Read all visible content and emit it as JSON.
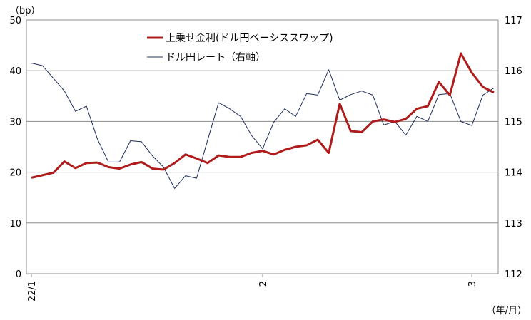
{
  "chart_data": {
    "type": "line",
    "title": "",
    "y_unit_label": "（bp）",
    "x_unit_label": "（年/月）",
    "x_tick_labels": [
      "22/1",
      "2",
      "3"
    ],
    "ylim": [
      0,
      50
    ],
    "y_ticks": [
      0,
      10,
      20,
      30,
      40,
      50
    ],
    "y2lim": [
      112,
      117
    ],
    "y2_ticks": [
      112,
      113,
      114,
      115,
      116,
      117
    ],
    "grid": true,
    "legend_position": "top-center",
    "series": [
      {
        "name": "上乗せ金利(ドル円ベーシススワップ)",
        "axis": "left",
        "color": "#b01c1c",
        "values": [
          18.9,
          19.4,
          19.9,
          22.1,
          20.8,
          21.8,
          21.9,
          21.0,
          20.7,
          21.5,
          22.0,
          20.7,
          20.5,
          21.8,
          23.5,
          22.7,
          21.8,
          23.3,
          23.0,
          23.0,
          23.8,
          24.2,
          23.5,
          24.4,
          25.0,
          25.3,
          26.4,
          23.8,
          33.5,
          28.1,
          27.9,
          30.0,
          30.4,
          29.9,
          30.5,
          32.5,
          33.0,
          37.8,
          35.2,
          43.4,
          39.6,
          36.8,
          35.7
        ]
      },
      {
        "name": "ドル円レート（右軸）",
        "axis": "right",
        "color": "#1f2d5c",
        "values": [
          116.15,
          116.1,
          115.85,
          115.6,
          115.2,
          115.3,
          114.65,
          114.2,
          114.2,
          114.62,
          114.6,
          114.32,
          114.1,
          113.68,
          113.93,
          113.88,
          114.63,
          115.37,
          115.25,
          115.1,
          114.72,
          114.46,
          114.98,
          115.25,
          115.1,
          115.55,
          115.52,
          116.02,
          115.42,
          115.53,
          115.6,
          115.52,
          114.93,
          115.0,
          114.73,
          115.1,
          115.0,
          115.53,
          115.55,
          115.0,
          114.92,
          115.52,
          115.66
        ]
      }
    ]
  }
}
